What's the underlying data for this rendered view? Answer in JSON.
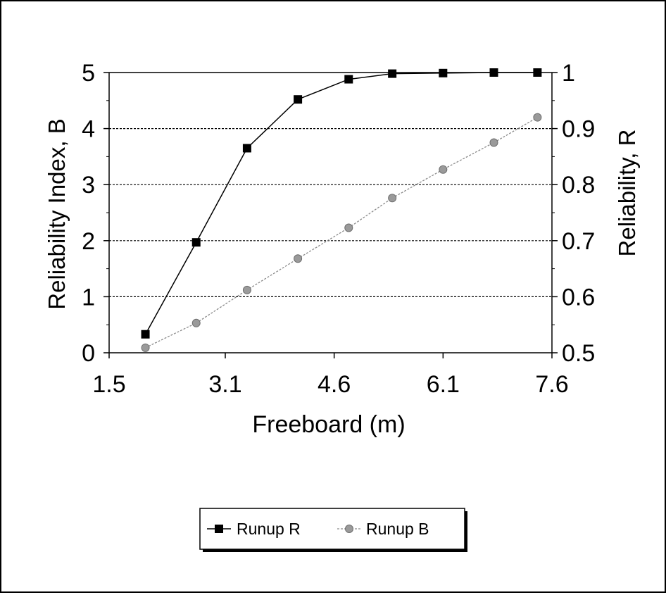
{
  "chart_data": {
    "type": "line",
    "xlabel": "Freeboard (m)",
    "ylabel": "Reliability Index, B",
    "y2label": "Reliability, R",
    "x_ticks": [
      "1.5",
      "3.1",
      "4.6",
      "6.1",
      "7.6"
    ],
    "y_ticks": [
      "0",
      "1",
      "2",
      "3",
      "4",
      "5"
    ],
    "y2_ticks": [
      "0.5",
      "0.6",
      "0.7",
      "0.8",
      "0.9",
      "1"
    ],
    "xlim": [
      1.5,
      7.6
    ],
    "ylim": [
      0,
      5
    ],
    "y2lim": [
      0.5,
      1
    ],
    "grid": true,
    "legend_position": "bottom-center",
    "series": [
      {
        "name": "Runup R",
        "axis": "y",
        "marker": "square",
        "line": "solid",
        "color": "#000000",
        "x": [
          2.0,
          2.7,
          3.4,
          4.1,
          4.8,
          5.4,
          6.1,
          6.8,
          7.4
        ],
        "y": [
          0.33,
          1.97,
          3.65,
          4.52,
          4.88,
          4.98,
          4.99,
          5.0,
          5.0
        ]
      },
      {
        "name": "Runup B",
        "axis": "y2",
        "marker": "circle",
        "line": "dotted",
        "color": "#8a8a8a",
        "x": [
          2.0,
          2.7,
          3.4,
          4.1,
          4.8,
          5.4,
          6.1,
          6.8,
          7.4
        ],
        "y": [
          0.509,
          0.553,
          0.612,
          0.668,
          0.723,
          0.776,
          0.827,
          0.875,
          0.92
        ]
      }
    ]
  }
}
